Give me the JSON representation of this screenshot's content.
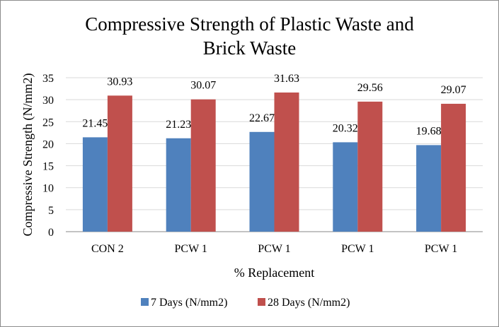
{
  "chart_data": {
    "type": "bar",
    "title": [
      "Compressive  Strength of Plastic Waste and",
      "Brick Waste"
    ],
    "xlabel": "% Replacement",
    "ylabel": "Compressive Strength (N/mm2)",
    "ylim": [
      0,
      35
    ],
    "yticks": [
      0,
      5,
      10,
      15,
      20,
      25,
      30,
      35
    ],
    "grid": true,
    "legend_position": "bottom",
    "categories": [
      "CON 2",
      "PCW 1",
      "PCW 1",
      "PCW 1",
      "PCW 1"
    ],
    "series": [
      {
        "name": "7 Days (N/mm2)",
        "color": "#4f81bd",
        "values": [
          21.45,
          21.23,
          22.67,
          20.32,
          19.68
        ],
        "labels": [
          "21.45",
          "21.23",
          "22.67",
          "20.32",
          "19.68"
        ]
      },
      {
        "name": "28 Days (N/mm2)",
        "color": "#c0504d",
        "values": [
          30.93,
          30.07,
          31.63,
          29.56,
          29.07
        ],
        "labels": [
          "30.93",
          "30.07",
          "31.63",
          "29.56",
          "29.07"
        ]
      }
    ]
  }
}
